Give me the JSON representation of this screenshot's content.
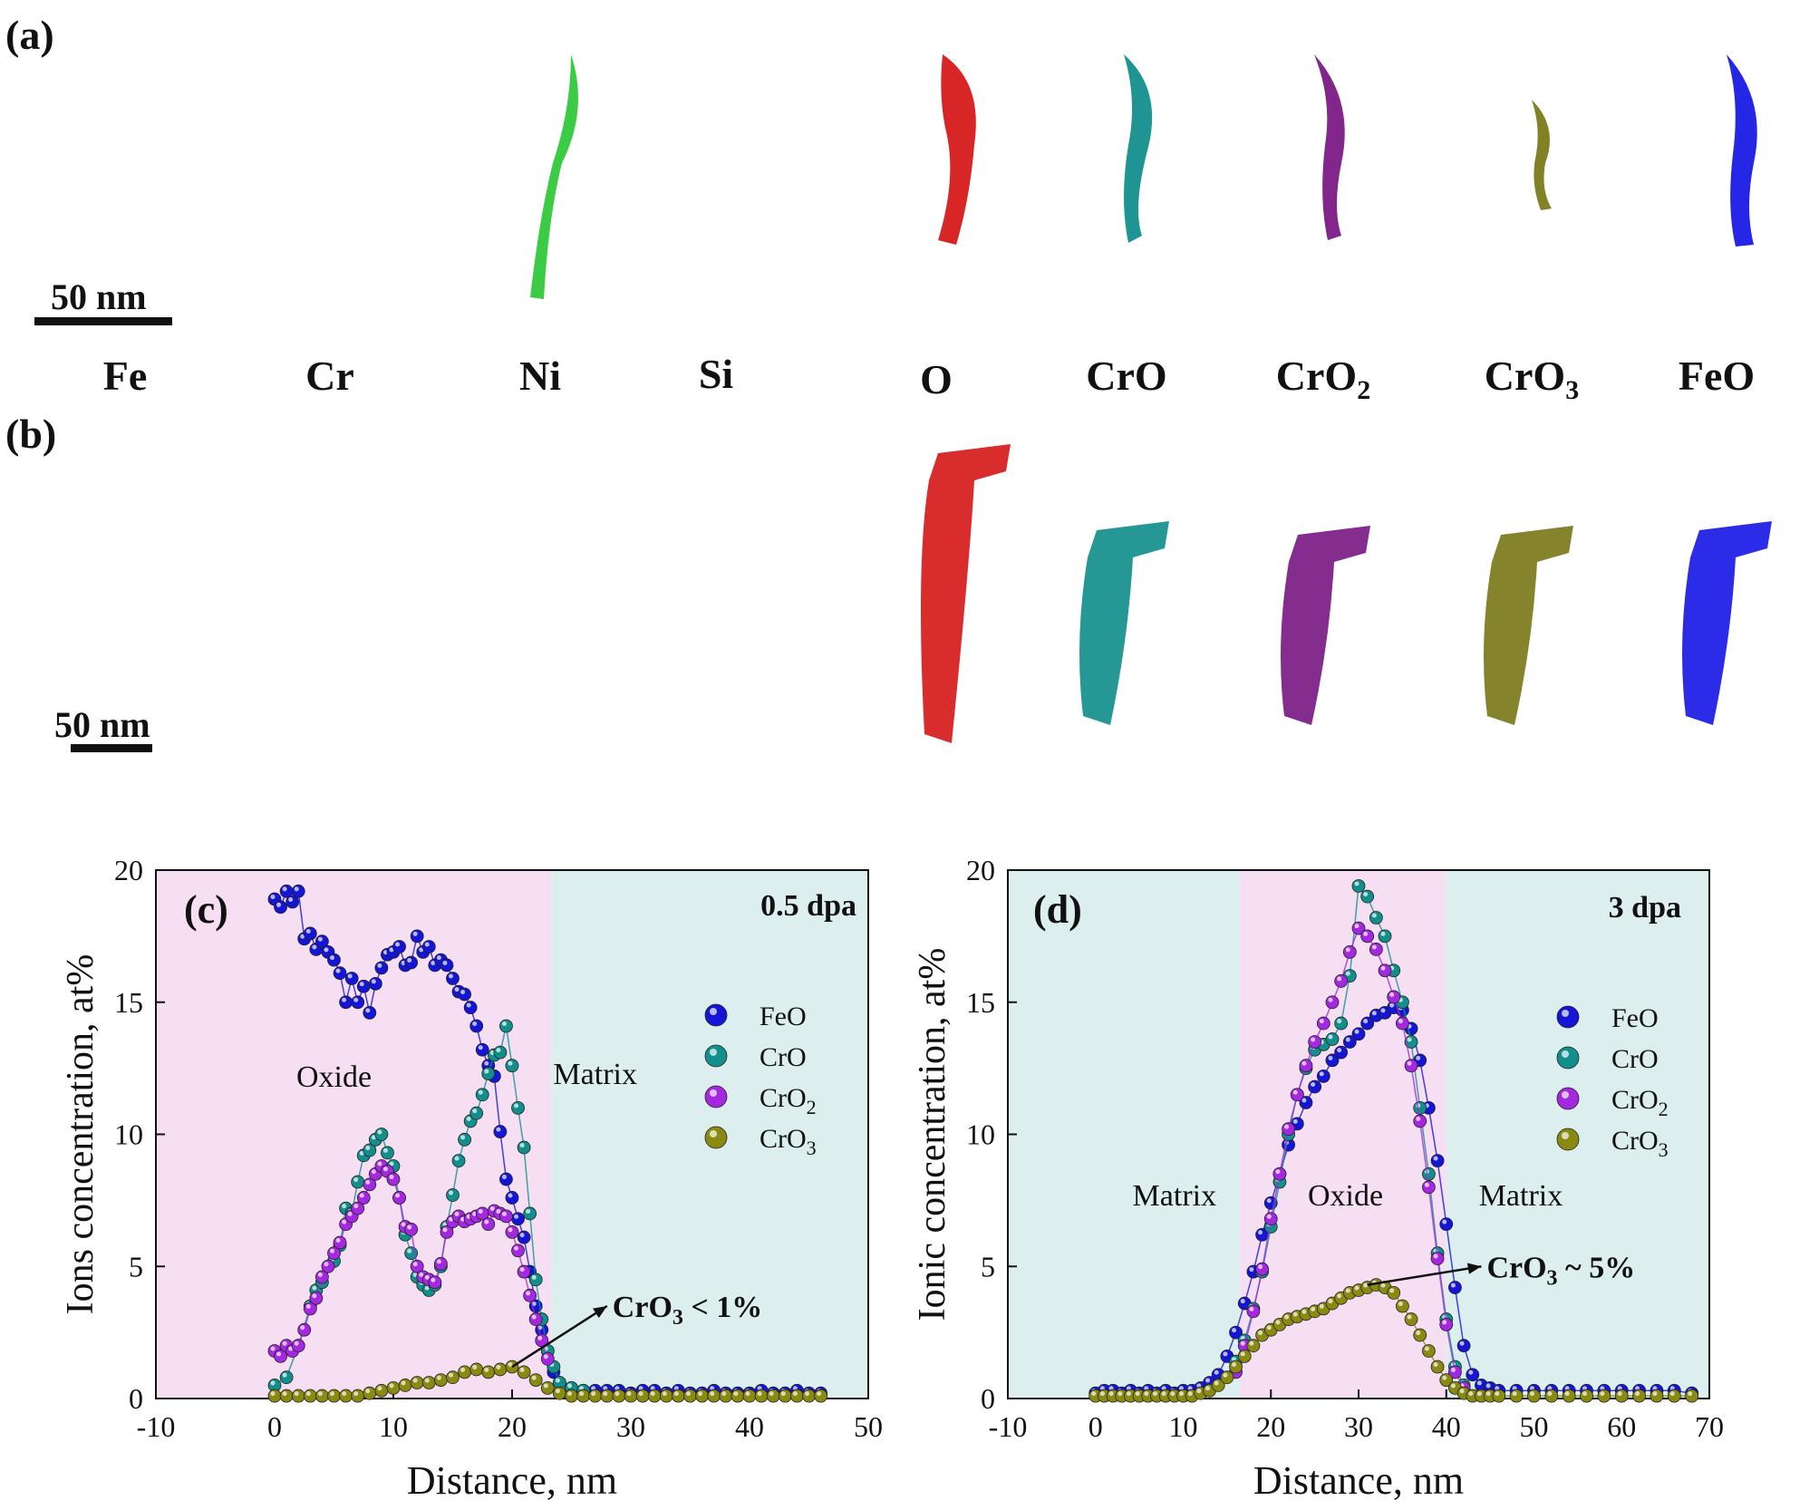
{
  "panels": {
    "a": "(a)",
    "b": "(b)"
  },
  "map_labels": [
    "Fe",
    "Cr",
    "Ni",
    "Si",
    "O",
    "CrO",
    "CrO",
    "CrO",
    "FeO"
  ],
  "map_label_subs": [
    "",
    "",
    "",
    "",
    "",
    "",
    "2",
    "3",
    ""
  ],
  "scale_bar": "50 nm",
  "colors": {
    "Fe": "#2aa6a8",
    "Cr": "#c9c22c",
    "Ni": "#31c83a",
    "Si": "#ec6ad6",
    "O": "#d61a1a",
    "CrO": "#128f8c",
    "CrO2": "#7b1a86",
    "CrO3": "#7b7a1a",
    "FeO": "#1a1ae6",
    "oxide_bg": "#f6dff2",
    "matrix_bg": "#dcefee"
  },
  "chart_data": [
    {
      "type": "scatter",
      "panel_label": "(c)",
      "annotation_top": "0.5 dpa",
      "xlabel": "Distance, nm",
      "ylabel": "Ions concentration, at%",
      "xlim": [
        -10,
        50
      ],
      "ylim": [
        0,
        20
      ],
      "xticks": [
        -10,
        0,
        10,
        20,
        30,
        40,
        50
      ],
      "yticks": [
        0,
        5,
        10,
        15,
        20
      ],
      "regions": [
        {
          "label": "Oxide",
          "from": -10,
          "to": 23.3,
          "kind": "oxide"
        },
        {
          "label": "Matrix",
          "from": 23.3,
          "to": 50,
          "kind": "matrix"
        }
      ],
      "region_text": [
        {
          "text": "Oxide",
          "x": 5,
          "y": 11.8
        },
        {
          "text": "Matrix",
          "x": 27,
          "y": 11.9
        }
      ],
      "arrow_note": {
        "text": "CrO",
        "sub": "3",
        "tail": " < 1%",
        "from": [
          20,
          1.2
        ],
        "to": [
          28,
          3.5
        ]
      },
      "legend": [
        "FeO",
        "CrO",
        "CrO2",
        "CrO3"
      ],
      "series": [
        {
          "name": "FeO",
          "color": "#1515d6",
          "x": [
            0,
            0.5,
            1,
            1.5,
            2,
            2.5,
            3,
            3.5,
            4,
            4.5,
            5,
            5.5,
            6,
            6.5,
            7,
            7.5,
            8,
            8.5,
            9,
            9.5,
            10,
            10.5,
            11,
            11.5,
            12,
            12.5,
            13,
            13.5,
            14,
            14.5,
            15,
            15.5,
            16,
            16.5,
            17,
            17.5,
            18,
            18.5,
            19,
            19.5,
            20,
            20.5,
            21,
            21.5,
            22,
            22.5,
            23,
            23.5,
            24,
            25,
            26,
            27,
            28,
            29,
            30,
            31,
            32,
            33,
            34,
            35,
            36,
            37,
            38,
            39,
            40,
            41,
            42,
            43,
            44,
            45,
            46
          ],
          "y": [
            18.9,
            18.6,
            19.2,
            18.8,
            19.2,
            17.4,
            17.6,
            17.0,
            17.3,
            16.9,
            16.6,
            16.1,
            15.0,
            15.9,
            15.0,
            15.6,
            14.6,
            15.7,
            16.3,
            16.8,
            16.9,
            17.1,
            16.4,
            16.5,
            17.5,
            16.9,
            17.1,
            16.4,
            16.6,
            16.4,
            15.9,
            15.4,
            15.3,
            14.8,
            14.1,
            13.2,
            12.6,
            12.2,
            10.1,
            8.3,
            7.6,
            6.8,
            6.1,
            4.8,
            3.5,
            2.6,
            1.8,
            1.0,
            0.6,
            0.4,
            0.3,
            0.3,
            0.3,
            0.3,
            0.2,
            0.3,
            0.3,
            0.2,
            0.3,
            0.2,
            0.2,
            0.3,
            0.2,
            0.2,
            0.2,
            0.3,
            0.2,
            0.2,
            0.3,
            0.2,
            0.2
          ]
        },
        {
          "name": "CrO",
          "color": "#128f8c",
          "x": [
            0,
            1,
            2,
            3,
            3.5,
            4,
            5,
            5.5,
            6,
            6.5,
            7,
            7.5,
            8,
            8.5,
            9,
            9.5,
            10,
            10.5,
            11,
            11.5,
            12,
            12.5,
            13,
            13.5,
            14,
            14.5,
            15,
            15.5,
            16,
            16.5,
            17,
            17.5,
            18,
            18.5,
            19,
            19.5,
            20,
            20.5,
            21,
            21.5,
            22,
            22.5,
            23,
            23.5,
            24,
            25,
            26
          ],
          "y": [
            0.5,
            0.8,
            2.0,
            3.5,
            4.1,
            4.4,
            5.2,
            5.8,
            7.2,
            7.0,
            8.2,
            9.2,
            9.4,
            9.8,
            10.0,
            9.3,
            8.8,
            7.6,
            6.2,
            5.5,
            4.6,
            4.3,
            4.1,
            4.3,
            5.0,
            6.5,
            7.7,
            9.0,
            9.8,
            10.5,
            10.8,
            11.5,
            12.3,
            13.0,
            13.1,
            14.1,
            12.6,
            11.0,
            9.5,
            7.0,
            4.5,
            3.0,
            1.8,
            1.2,
            0.6,
            0.4,
            0.3
          ]
        },
        {
          "name": "CrO2",
          "color": "#a428e0",
          "x": [
            0,
            0.5,
            1,
            1.5,
            2,
            2.5,
            3,
            3.5,
            4,
            4.5,
            5,
            5.5,
            6,
            6.5,
            7,
            7.5,
            8,
            8.5,
            9,
            9.5,
            10,
            10.5,
            11,
            11.5,
            12,
            12.5,
            13,
            13.5,
            14,
            14.5,
            15,
            15.5,
            16,
            16.5,
            17,
            17.5,
            18,
            18.5,
            19,
            19.5,
            20,
            20.5,
            21,
            21.5,
            22,
            22.5,
            23
          ],
          "y": [
            1.8,
            1.6,
            2.0,
            1.8,
            2.0,
            2.6,
            3.4,
            3.8,
            4.6,
            5.0,
            5.5,
            5.9,
            6.6,
            6.9,
            7.2,
            7.6,
            8.1,
            8.5,
            8.8,
            8.6,
            8.3,
            7.6,
            6.5,
            6.4,
            5.0,
            4.6,
            4.5,
            4.4,
            5.1,
            6.3,
            6.7,
            6.9,
            6.7,
            6.8,
            6.9,
            7.0,
            6.6,
            7.1,
            7.0,
            6.9,
            6.3,
            5.6,
            4.8,
            3.9,
            3.0,
            2.2,
            1.5
          ]
        },
        {
          "name": "CrO3",
          "color": "#8a8a12",
          "x": [
            0,
            1,
            2,
            3,
            4,
            5,
            6,
            7,
            8,
            9,
            10,
            11,
            12,
            13,
            14,
            15,
            16,
            17,
            18,
            19,
            20,
            21,
            22,
            23,
            24,
            25,
            26,
            27,
            28,
            29,
            30,
            31,
            32,
            33,
            34,
            35,
            36,
            37,
            38,
            39,
            40,
            41,
            42,
            43,
            44,
            45,
            46
          ],
          "y": [
            0.1,
            0.1,
            0.1,
            0.1,
            0.1,
            0.1,
            0.1,
            0.1,
            0.2,
            0.3,
            0.4,
            0.5,
            0.6,
            0.6,
            0.7,
            0.8,
            1.0,
            1.1,
            1.0,
            1.1,
            1.2,
            1.0,
            0.7,
            0.4,
            0.2,
            0.1,
            0.1,
            0.1,
            0.1,
            0.1,
            0.1,
            0.1,
            0.1,
            0.1,
            0.1,
            0.1,
            0.1,
            0.1,
            0.1,
            0.1,
            0.1,
            0.1,
            0.1,
            0.1,
            0.1,
            0.1,
            0.1
          ]
        }
      ]
    },
    {
      "type": "scatter",
      "panel_label": "(d)",
      "annotation_top": "3 dpa",
      "xlabel": "Distance, nm",
      "ylabel": "Ionic concentration, at%",
      "xlim": [
        -10,
        70
      ],
      "ylim": [
        0,
        20
      ],
      "xticks": [
        -10,
        0,
        10,
        20,
        30,
        40,
        50,
        60,
        70
      ],
      "yticks": [
        0,
        5,
        10,
        15,
        20
      ],
      "regions": [
        {
          "label": "Matrix",
          "from": -10,
          "to": 16.5,
          "kind": "matrix"
        },
        {
          "label": "Oxide",
          "from": 16.5,
          "to": 40,
          "kind": "oxide"
        },
        {
          "label": "Matrix",
          "from": 40,
          "to": 70,
          "kind": "matrix"
        }
      ],
      "region_text": [
        {
          "text": "Matrix",
          "x": 9,
          "y": 7.3
        },
        {
          "text": "Oxide",
          "x": 28.5,
          "y": 7.3
        },
        {
          "text": "Matrix",
          "x": 48.5,
          "y": 7.3
        }
      ],
      "arrow_note": {
        "text": "CrO",
        "sub": "3",
        "tail": " ~ 5%",
        "from": [
          31,
          4.3
        ],
        "to": [
          44,
          5.0
        ]
      },
      "legend": [
        "FeO",
        "CrO",
        "CrO2",
        "CrO3"
      ],
      "series": [
        {
          "name": "FeO",
          "color": "#1515d6",
          "x": [
            0,
            1,
            2,
            3,
            4,
            5,
            6,
            7,
            8,
            9,
            10,
            11,
            12,
            13,
            14,
            15,
            16,
            17,
            18,
            19,
            20,
            21,
            22,
            23,
            24,
            25,
            26,
            27,
            28,
            29,
            30,
            31,
            32,
            33,
            34,
            35,
            36,
            37,
            38,
            39,
            40,
            41,
            42,
            43,
            44,
            45,
            46,
            48,
            50,
            52,
            54,
            56,
            58,
            60,
            62,
            64,
            66,
            68
          ],
          "y": [
            0.2,
            0.3,
            0.3,
            0.2,
            0.3,
            0.2,
            0.3,
            0.2,
            0.3,
            0.2,
            0.3,
            0.3,
            0.4,
            0.6,
            0.9,
            1.6,
            2.5,
            3.6,
            4.8,
            6.2,
            7.4,
            8.5,
            9.6,
            10.4,
            11.2,
            11.8,
            12.2,
            12.8,
            13.1,
            13.5,
            13.8,
            14.2,
            14.5,
            14.6,
            14.8,
            14.7,
            14.0,
            12.8,
            11.0,
            9.0,
            6.6,
            4.2,
            2.0,
            0.9,
            0.5,
            0.4,
            0.3,
            0.3,
            0.3,
            0.3,
            0.3,
            0.3,
            0.3,
            0.3,
            0.3,
            0.3,
            0.3,
            0.2
          ]
        },
        {
          "name": "CrO",
          "color": "#128f8c",
          "x": [
            16,
            17,
            18,
            19,
            20,
            21,
            22,
            23,
            24,
            25,
            26,
            27,
            28,
            29,
            30,
            31,
            32,
            33,
            34,
            35,
            36,
            37,
            38,
            39,
            40,
            41,
            42
          ],
          "y": [
            1.4,
            2.2,
            3.4,
            4.8,
            6.5,
            8.2,
            10.0,
            11.5,
            12.5,
            13.2,
            13.4,
            13.6,
            14.2,
            16.0,
            19.4,
            19.0,
            18.2,
            17.5,
            16.2,
            15.0,
            13.5,
            11.0,
            8.5,
            5.5,
            3.0,
            1.2,
            0.5
          ]
        },
        {
          "name": "CrO2",
          "color": "#a428e0",
          "x": [
            16,
            17,
            18,
            19,
            20,
            21,
            22,
            23,
            24,
            25,
            26,
            27,
            28,
            29,
            30,
            31,
            32,
            33,
            34,
            35,
            36,
            37,
            38,
            39,
            40,
            41,
            42
          ],
          "y": [
            1.0,
            2.0,
            3.3,
            4.9,
            6.8,
            8.5,
            10.2,
            11.5,
            12.6,
            13.5,
            14.2,
            15.0,
            15.8,
            16.9,
            17.8,
            17.5,
            17.0,
            16.2,
            15.2,
            14.2,
            12.6,
            10.5,
            8.0,
            5.3,
            2.8,
            1.0,
            0.4
          ]
        },
        {
          "name": "CrO3",
          "color": "#8a8a12",
          "x": [
            0,
            1,
            2,
            3,
            4,
            5,
            6,
            7,
            8,
            9,
            10,
            11,
            12,
            13,
            14,
            15,
            16,
            17,
            18,
            19,
            20,
            21,
            22,
            23,
            24,
            25,
            26,
            27,
            28,
            29,
            30,
            31,
            32,
            33,
            34,
            35,
            36,
            37,
            38,
            39,
            40,
            41,
            42,
            43,
            44,
            45,
            46,
            48,
            50,
            52,
            54,
            56,
            58,
            60,
            62,
            64,
            66,
            68
          ],
          "y": [
            0.1,
            0.1,
            0.1,
            0.1,
            0.1,
            0.1,
            0.1,
            0.1,
            0.1,
            0.1,
            0.1,
            0.1,
            0.2,
            0.3,
            0.5,
            0.8,
            1.2,
            1.6,
            2.0,
            2.4,
            2.6,
            2.8,
            3.0,
            3.1,
            3.2,
            3.3,
            3.4,
            3.6,
            3.8,
            4.0,
            4.1,
            4.2,
            4.3,
            4.2,
            4.0,
            3.5,
            3.0,
            2.4,
            1.8,
            1.2,
            0.7,
            0.4,
            0.2,
            0.1,
            0.1,
            0.1,
            0.1,
            0.1,
            0.1,
            0.1,
            0.1,
            0.1,
            0.1,
            0.1,
            0.1,
            0.1,
            0.1,
            0.1
          ]
        }
      ]
    }
  ]
}
